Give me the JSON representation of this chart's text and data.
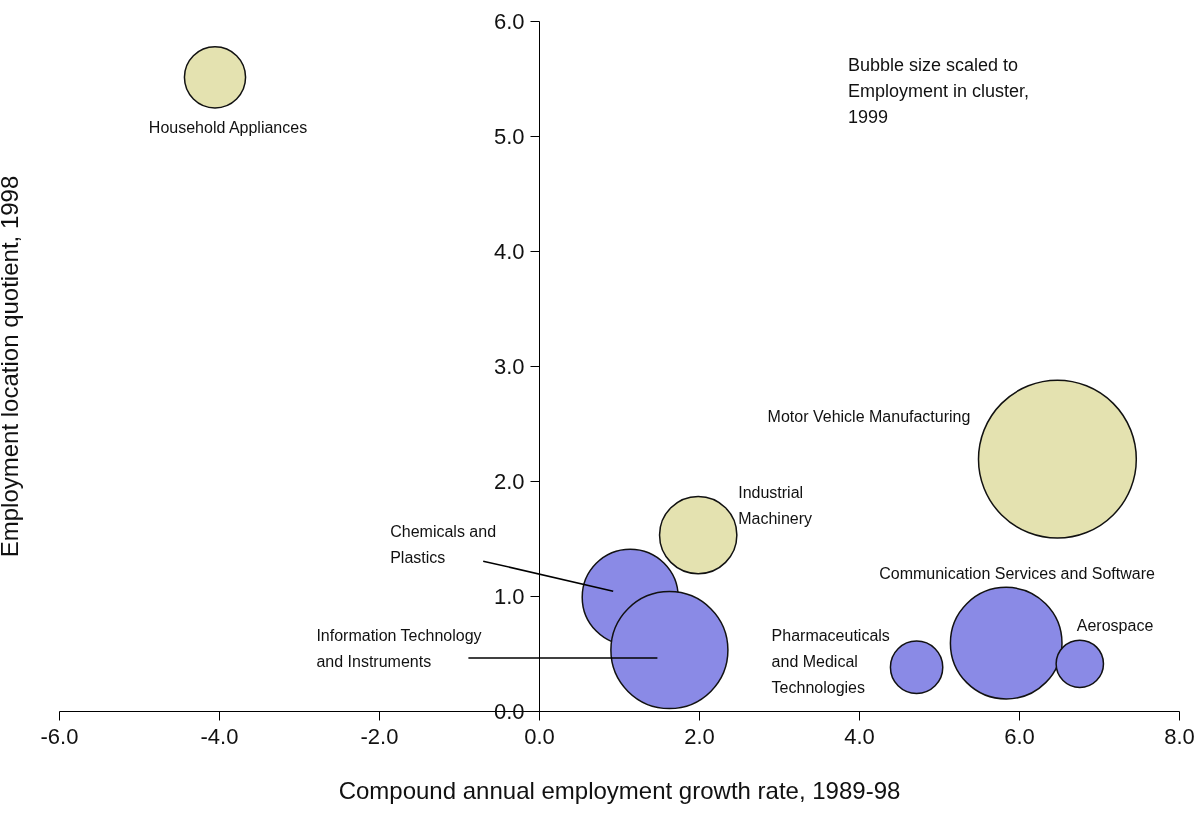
{
  "chart_data": {
    "type": "bubble",
    "xlabel": "Compound annual employment growth rate, 1989-98",
    "ylabel": "Employment location quotient, 1998",
    "xlim": [
      -6,
      8
    ],
    "xticks": [
      {
        "value": -6,
        "label": "-6.0"
      },
      {
        "value": -4,
        "label": "-4.0"
      },
      {
        "value": -2,
        "label": "-2.0"
      },
      {
        "value": 0,
        "label": "0.0"
      },
      {
        "value": 2,
        "label": "2.0"
      },
      {
        "value": 4,
        "label": "4.0"
      },
      {
        "value": 6,
        "label": "6.0"
      },
      {
        "value": 8,
        "label": "8.0"
      }
    ],
    "ylim": [
      0,
      6
    ],
    "yticks": [
      {
        "value": 0,
        "label": "0.0"
      },
      {
        "value": 1,
        "label": "1.0"
      },
      {
        "value": 2,
        "label": "2.0"
      },
      {
        "value": 3,
        "label": "3.0"
      },
      {
        "value": 4,
        "label": "4.0"
      },
      {
        "value": 5,
        "label": "5.0"
      },
      {
        "value": 6,
        "label": "6.0"
      }
    ],
    "grid": false,
    "legend": false,
    "annotations": [
      "Bubble size scaled to Employment in cluster, 1999"
    ],
    "series": [
      {
        "name": "Household Appliances",
        "color": "#e4e2b0",
        "x": [
          -4.05
        ],
        "values": [
          5.51
        ],
        "sizes": [
          0.15
        ]
      },
      {
        "name": "Motor Vehicle Manufacturing",
        "color": "#e4e2b0",
        "x": [
          6.48
        ],
        "values": [
          2.19
        ],
        "sizes": [
          1
        ]
      },
      {
        "name": "Industrial Machinery",
        "color": "#e4e2b0",
        "x": [
          1.99
        ],
        "values": [
          1.53
        ],
        "sizes": [
          0.24
        ]
      },
      {
        "name": "Chemicals and Plastics",
        "color": "#8a8ae6",
        "x": [
          1.14
        ],
        "values": [
          0.99
        ],
        "sizes": [
          0.37
        ]
      },
      {
        "name": "Information Technology and Instruments",
        "color": "#8a8ae6",
        "x": [
          1.63
        ],
        "values": [
          0.53
        ],
        "sizes": [
          0.55
        ]
      },
      {
        "name": "Pharmaceuticals and Medical Technologies",
        "color": "#8a8ae6",
        "x": [
          4.72
        ],
        "values": [
          0.38
        ],
        "sizes": [
          0.11
        ]
      },
      {
        "name": "Communication Services and Software",
        "color": "#8a8ae6",
        "x": [
          5.84
        ],
        "values": [
          0.59
        ],
        "sizes": [
          0.5
        ]
      },
      {
        "name": "Aerospace",
        "color": "#8a8ae6",
        "x": [
          6.76
        ],
        "values": [
          0.41
        ],
        "sizes": [
          0.09
        ]
      }
    ]
  }
}
